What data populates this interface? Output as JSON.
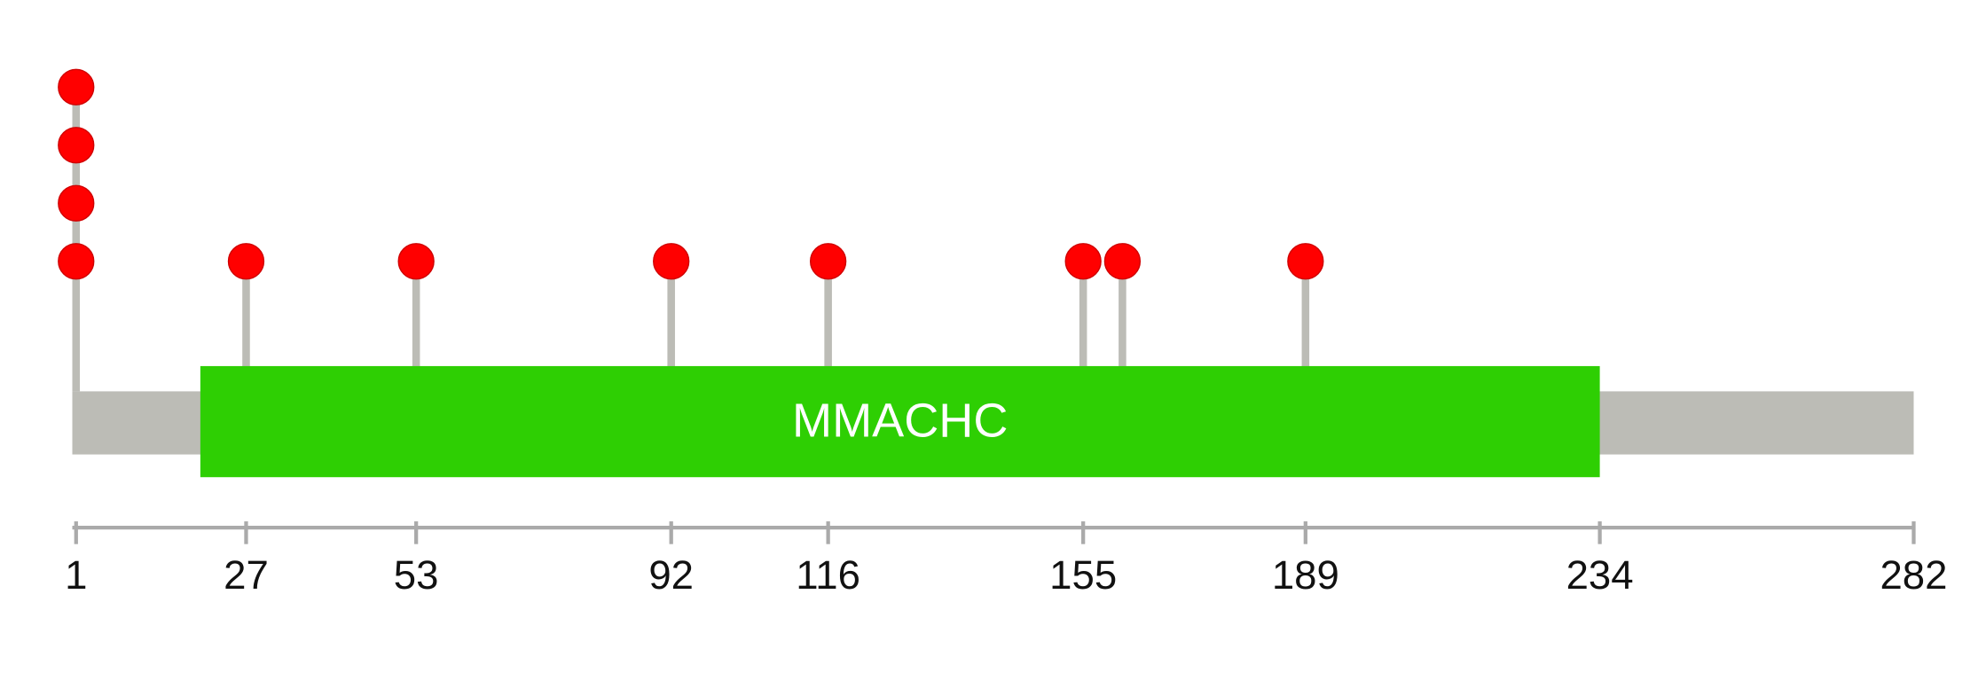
{
  "chart_data": {
    "type": "lollipop",
    "domain": {
      "name": "MMACHC",
      "start": 20,
      "end": 234,
      "color": "#2ecf03"
    },
    "backbone_color": "#bcbcb6",
    "x": [
      1,
      27,
      53,
      92,
      116,
      155,
      161,
      189
    ],
    "values": [
      4,
      1,
      1,
      1,
      1,
      1,
      1,
      1
    ],
    "color": "#ff0000",
    "xlim": [
      1,
      282
    ],
    "xticks": [
      1,
      27,
      53,
      92,
      116,
      155,
      189,
      234,
      282
    ]
  }
}
